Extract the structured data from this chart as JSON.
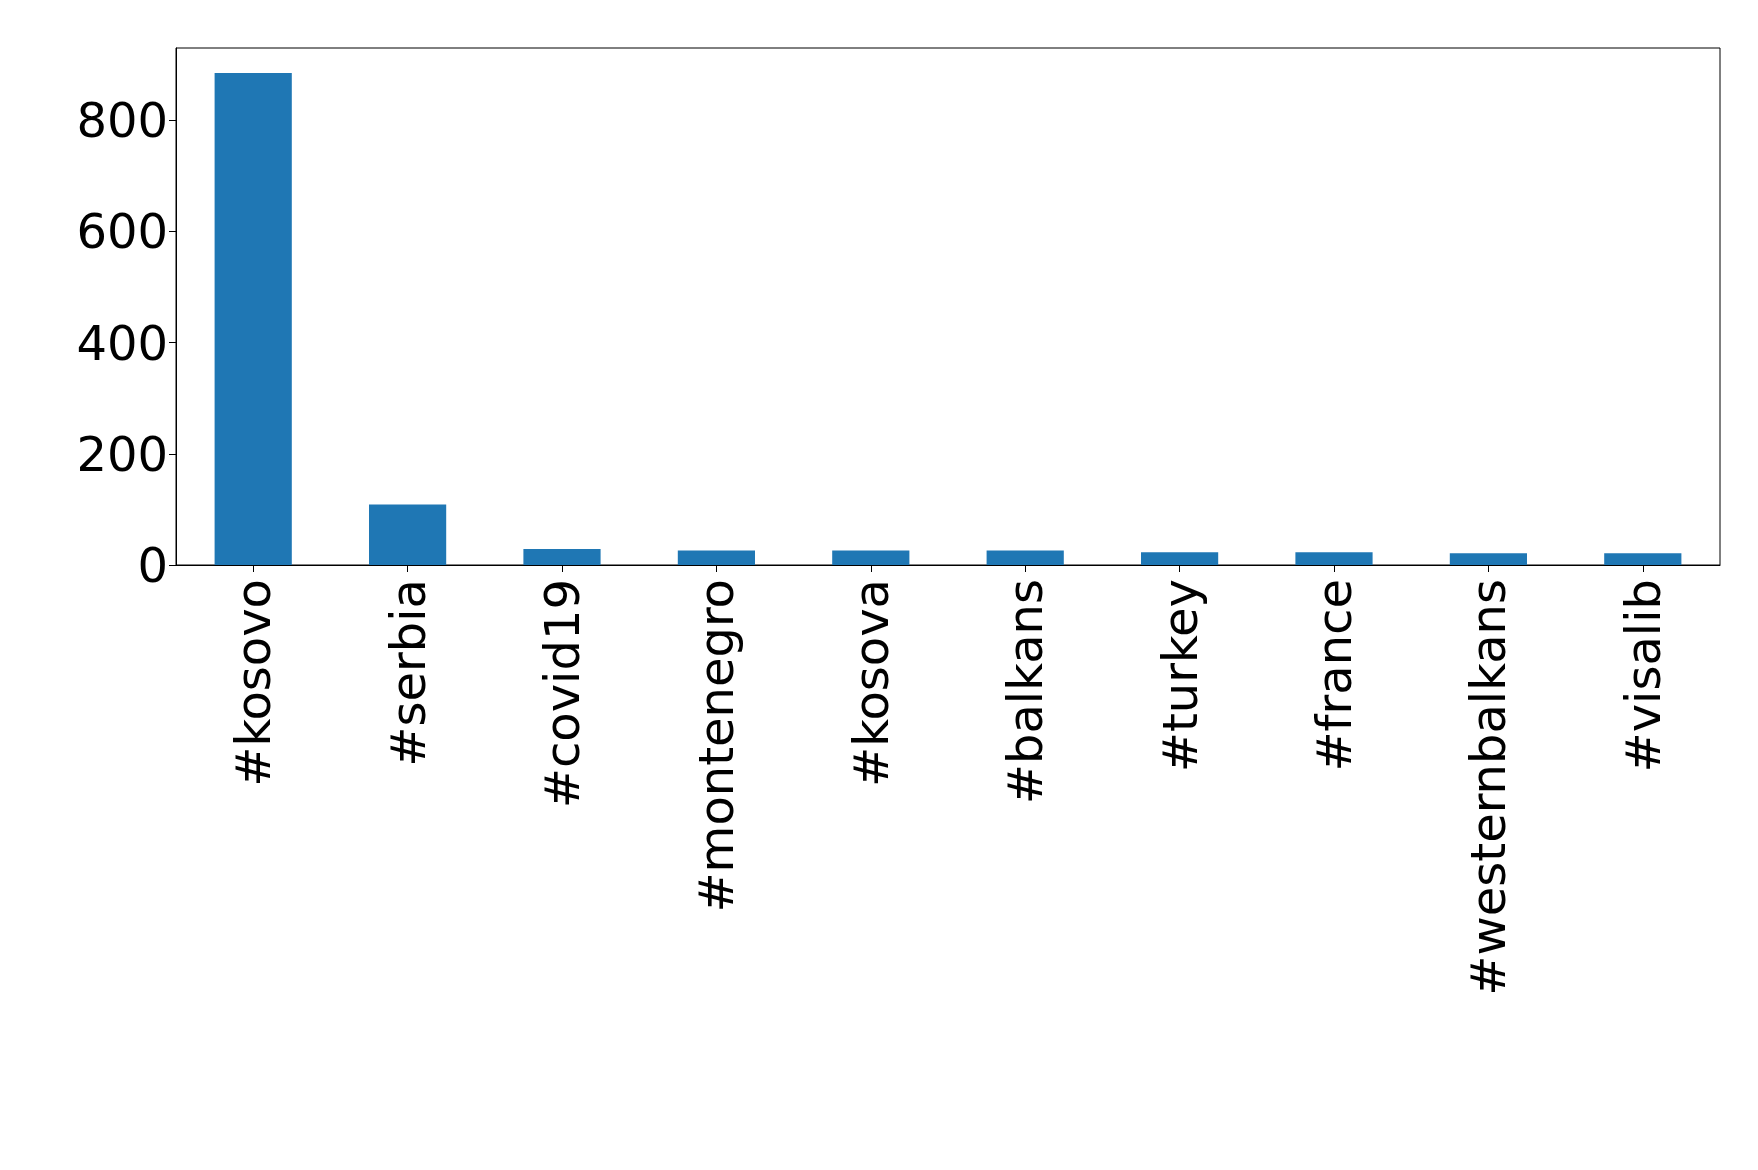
{
  "chart_data": {
    "type": "bar",
    "categories": [
      "#kosovo",
      "#serbia",
      "#covid19",
      "#montenegro",
      "#kosova",
      "#balkans",
      "#turkey",
      "#france",
      "#westernbalkans",
      "#visalib"
    ],
    "values": [
      885,
      109,
      29,
      26,
      26,
      26,
      23,
      23,
      21,
      21
    ],
    "color": "#1f77b4",
    "ylim": [
      0,
      930
    ],
    "yticks": [
      0,
      200,
      400,
      600,
      800
    ],
    "grid": false
  }
}
